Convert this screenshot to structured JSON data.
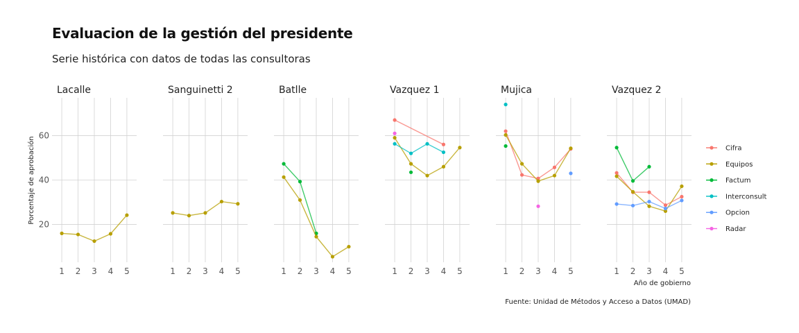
{
  "title": "Evaluacion de la gestión del presidente",
  "subtitle": "Serie histórica con datos de todas las consultoras",
  "caption": "Fuente: Unidad de Métodos y Acceso a Datos (UMAD)",
  "colors": {
    "Cifra": "#F8766D",
    "Equipos": "#B79F00",
    "Factum": "#00BA38",
    "Interconsult": "#00BFC4",
    "Opcion": "#619CFF",
    "Radar": "#F564E3"
  },
  "chart_data": {
    "type": "line",
    "xlabel": "Año de gobierno",
    "ylabel": "Porcentaje de aprobación",
    "x_ticks": [
      1,
      2,
      3,
      4,
      5
    ],
    "y_ticks": [
      20,
      40,
      60
    ],
    "xlim": [
      0.4,
      5.6
    ],
    "ylim": [
      3,
      77
    ],
    "grid": true,
    "legend_position": "right",
    "legend": [
      "Cifra",
      "Equipos",
      "Factum",
      "Interconsult",
      "Opcion",
      "Radar"
    ],
    "panels": [
      {
        "name": "Lacalle",
        "series": [
          {
            "name": "Equipos",
            "x": [
              1,
              2,
              3,
              4,
              5
            ],
            "y": [
              16,
              15.5,
              12.5,
              15.8,
              24.2
            ]
          }
        ]
      },
      {
        "name": "Sanguinetti 2",
        "series": [
          {
            "name": "Equipos",
            "x": [
              1,
              2,
              3,
              4,
              5
            ],
            "y": [
              25.2,
              24,
              25.2,
              30.3,
              29.3
            ]
          }
        ]
      },
      {
        "name": "Batlle",
        "series": [
          {
            "name": "Factum",
            "x": [
              1,
              2,
              3
            ],
            "y": [
              47.3,
              39.3,
              16
            ]
          },
          {
            "name": "Equipos",
            "x": [
              1,
              2,
              3,
              4,
              5
            ],
            "y": [
              41.3,
              31,
              14.5,
              5.5,
              10
            ]
          }
        ]
      },
      {
        "name": "Vazquez 1",
        "series": [
          {
            "name": "Cifra",
            "x": [
              1,
              4
            ],
            "y": [
              67,
              56
            ]
          },
          {
            "name": "Radar",
            "x": [
              1
            ],
            "y": [
              61
            ]
          },
          {
            "name": "Equipos",
            "x": [
              1,
              2,
              3,
              4,
              5
            ],
            "y": [
              59,
              47.3,
              42,
              46,
              54.6
            ]
          },
          {
            "name": "Interconsult",
            "x": [
              1,
              2,
              3,
              4
            ],
            "y": [
              56.3,
              52,
              56.3,
              52.5
            ]
          },
          {
            "name": "Factum",
            "x": [
              2
            ],
            "y": [
              43.5
            ]
          }
        ]
      },
      {
        "name": "Mujica",
        "series": [
          {
            "name": "Interconsult",
            "x": [
              1
            ],
            "y": [
              74
            ]
          },
          {
            "name": "Cifra",
            "x": [
              1,
              2,
              3,
              4,
              5
            ],
            "y": [
              62,
              42.3,
              40.7,
              45.7,
              54
            ]
          },
          {
            "name": "Equipos",
            "x": [
              1,
              2,
              3,
              4,
              5
            ],
            "y": [
              60.3,
              47.3,
              39.5,
              42,
              54.3
            ]
          },
          {
            "name": "Factum",
            "x": [
              1
            ],
            "y": [
              55.3
            ]
          },
          {
            "name": "Radar",
            "x": [
              3
            ],
            "y": [
              28.2
            ]
          },
          {
            "name": "Opcion",
            "x": [
              5
            ],
            "y": [
              43
            ]
          }
        ]
      },
      {
        "name": "Vazquez 2",
        "series": [
          {
            "name": "Factum",
            "x": [
              1,
              2,
              3
            ],
            "y": [
              54.6,
              39.6,
              46
            ]
          },
          {
            "name": "Cifra",
            "x": [
              1,
              2,
              3,
              4,
              5
            ],
            "y": [
              43.2,
              34.5,
              34.5,
              28.7,
              32.5
            ]
          },
          {
            "name": "Equipos",
            "x": [
              1,
              2,
              3,
              4,
              5
            ],
            "y": [
              41.7,
              34.7,
              28.2,
              26,
              37.2
            ]
          },
          {
            "name": "Opcion",
            "x": [
              1,
              2,
              3,
              4,
              5
            ],
            "y": [
              29.2,
              28.5,
              30.3,
              27.2,
              30.8
            ]
          }
        ]
      }
    ]
  }
}
